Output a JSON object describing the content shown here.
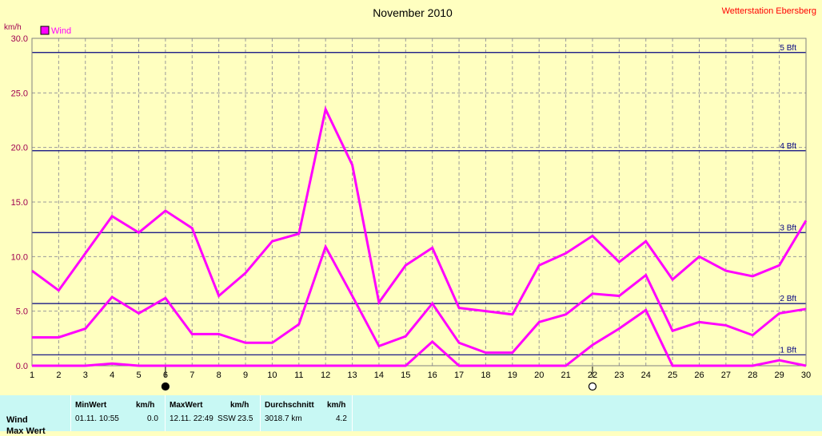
{
  "chart_data": {
    "type": "line",
    "title": "November 2010",
    "station": "Wetterstation Ebersberg",
    "ylabel": "km/h",
    "ylim": [
      0,
      30
    ],
    "yticks": [
      "0.0",
      "5.0",
      "10.0",
      "15.0",
      "20.0",
      "25.0",
      "30.0"
    ],
    "x": [
      1,
      2,
      3,
      4,
      5,
      6,
      7,
      8,
      9,
      10,
      11,
      12,
      13,
      14,
      15,
      16,
      17,
      18,
      19,
      20,
      21,
      22,
      23,
      24,
      25,
      26,
      27,
      28,
      29,
      30
    ],
    "grid": true,
    "legend": {
      "label": "Wind",
      "position": "top-left"
    },
    "series": [
      {
        "name": "Wind max",
        "values": [
          8.7,
          6.9,
          10.3,
          13.7,
          12.2,
          14.2,
          12.6,
          6.4,
          8.5,
          11.4,
          12.1,
          23.5,
          18.4,
          5.8,
          9.2,
          10.8,
          5.3,
          5.0,
          4.7,
          9.2,
          10.3,
          11.9,
          9.5,
          11.4,
          7.9,
          10.0,
          8.7,
          8.2,
          9.2,
          13.3
        ]
      },
      {
        "name": "Wind avg",
        "values": [
          2.6,
          2.6,
          3.4,
          6.3,
          4.8,
          6.2,
          2.9,
          2.9,
          2.1,
          2.1,
          3.8,
          10.9,
          6.4,
          1.8,
          2.7,
          5.7,
          2.1,
          1.2,
          1.2,
          4.0,
          4.7,
          6.6,
          6.4,
          8.3,
          3.2,
          4.0,
          3.7,
          2.8,
          4.8,
          5.2
        ]
      },
      {
        "name": "Wind min",
        "values": [
          0.0,
          0.0,
          0.0,
          0.2,
          0.0,
          0.0,
          0.0,
          0.0,
          0.0,
          0.0,
          0.0,
          0.0,
          0.0,
          0.0,
          0.0,
          2.2,
          0.0,
          0.0,
          0.0,
          0.0,
          0.0,
          1.9,
          3.4,
          5.1,
          0.0,
          0.0,
          0.0,
          0.0,
          0.5,
          0.0
        ]
      }
    ],
    "reference_lines": [
      {
        "label": "1 Bft",
        "value": 1.0
      },
      {
        "label": "2 Bft",
        "value": 5.7
      },
      {
        "label": "3 Bft",
        "value": 12.2
      },
      {
        "label": "4 Bft",
        "value": 19.7
      },
      {
        "label": "5 Bft",
        "value": 28.7
      }
    ],
    "moon_phases": [
      {
        "day": 6,
        "phase": "new-moon"
      },
      {
        "day": 22,
        "phase": "full-moon"
      }
    ],
    "colors": {
      "series": "#ff00ff",
      "reference": "#000080",
      "background": "#ffffc0",
      "station": "#ff0000",
      "ylabel": "#a00050"
    }
  },
  "stats": {
    "headers": {
      "min_value": "MinWert",
      "min_unit": "km/h",
      "max_value": "MaxWert",
      "max_unit": "km/h",
      "avg_value": "Durchschnitt",
      "avg_unit": "km/h"
    },
    "rows": [
      {
        "label": "Wind",
        "min_time": "01.11.  10:55",
        "min_value": "0.0",
        "max_time": "12.11.  22:49",
        "max_dir": "SSW",
        "max_value": "23.5",
        "distance": "3018.7 km",
        "avg_value": "4.2"
      }
    ],
    "partial_row_label": "Max Wert"
  }
}
